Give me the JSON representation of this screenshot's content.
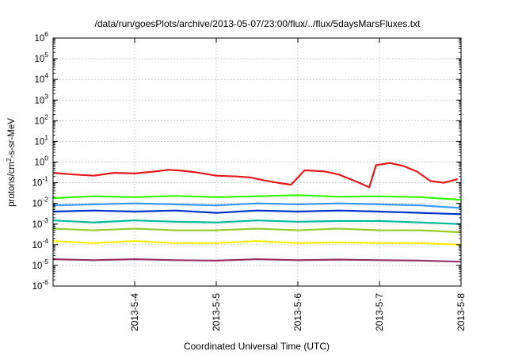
{
  "chart_data": {
    "type": "line",
    "title": "/data/run/goesPlots/archive/2013-05-07/23:00/flux/../flux/5daysMarsFluxes.txt",
    "xlabel": "Coordinated Universal Time (UTC)",
    "ylabel_parts": [
      "protons/cm",
      "2",
      "-s-sr-MeV"
    ],
    "yscale": "log",
    "ylim": [
      1e-06,
      1000000.0
    ],
    "xlim": [
      "2013-05-03 00:00",
      "2013-05-08 00:00"
    ],
    "x_tick_labels": [
      "2013-5-4",
      "2013-5-5",
      "2013-5-6",
      "2013-5-7",
      "2013-5-8"
    ],
    "y_tick_labels": [
      {
        "base": "10",
        "exp": "-6"
      },
      {
        "base": "10",
        "exp": "-5"
      },
      {
        "base": "10",
        "exp": "-4"
      },
      {
        "base": "10",
        "exp": "-3"
      },
      {
        "base": "10",
        "exp": "-2"
      },
      {
        "base": "10",
        "exp": "-1"
      },
      {
        "base": "10",
        "exp": "0"
      },
      {
        "base": "10",
        "exp": "1"
      },
      {
        "base": "10",
        "exp": "2"
      },
      {
        "base": "10",
        "exp": "3"
      },
      {
        "base": "10",
        "exp": "4"
      },
      {
        "base": "10",
        "exp": "5"
      },
      {
        "base": "10",
        "exp": "6"
      }
    ],
    "grid": true,
    "series": [
      {
        "color": "#e41a1c",
        "values": [
          [
            "2013-05-03 00:00",
            0.3
          ],
          [
            "2013-05-03 06:00",
            0.25
          ],
          [
            "2013-05-03 12:00",
            0.22
          ],
          [
            "2013-05-03 18:00",
            0.3
          ],
          [
            "2013-05-04 00:00",
            0.28
          ],
          [
            "2013-05-04 06:00",
            0.35
          ],
          [
            "2013-05-04 10:00",
            0.42
          ],
          [
            "2013-05-04 14:00",
            0.38
          ],
          [
            "2013-05-04 18:00",
            0.32
          ],
          [
            "2013-05-05 00:00",
            0.22
          ],
          [
            "2013-05-05 06:00",
            0.2
          ],
          [
            "2013-05-05 10:00",
            0.18
          ],
          [
            "2013-05-05 14:00",
            0.13
          ],
          [
            "2013-05-05 18:00",
            0.1
          ],
          [
            "2013-05-05 22:00",
            0.08
          ],
          [
            "2013-05-06 02:00",
            0.4
          ],
          [
            "2013-05-06 08:00",
            0.35
          ],
          [
            "2013-05-06 12:00",
            0.25
          ],
          [
            "2013-05-06 18:00",
            0.1
          ],
          [
            "2013-05-06 21:00",
            0.06
          ],
          [
            "2013-05-06 23:00",
            0.7
          ],
          [
            "2013-05-07 03:00",
            0.9
          ],
          [
            "2013-05-07 07:00",
            0.65
          ],
          [
            "2013-05-07 11:00",
            0.35
          ],
          [
            "2013-05-07 15:00",
            0.12
          ],
          [
            "2013-05-07 19:00",
            0.1
          ],
          [
            "2013-05-07 23:00",
            0.15
          ]
        ]
      },
      {
        "color": "#33ff00",
        "values": [
          [
            "2013-05-03 00:00",
            0.018
          ],
          [
            "2013-05-03 12:00",
            0.022
          ],
          [
            "2013-05-04 00:00",
            0.02
          ],
          [
            "2013-05-04 12:00",
            0.023
          ],
          [
            "2013-05-05 00:00",
            0.02
          ],
          [
            "2013-05-05 12:00",
            0.022
          ],
          [
            "2013-05-06 00:00",
            0.025
          ],
          [
            "2013-05-06 12:00",
            0.021
          ],
          [
            "2013-05-07 00:00",
            0.022
          ],
          [
            "2013-05-07 12:00",
            0.02
          ],
          [
            "2013-05-08 00:00",
            0.015
          ]
        ]
      },
      {
        "color": "#3399ff",
        "values": [
          [
            "2013-05-03 00:00",
            0.008
          ],
          [
            "2013-05-03 12:00",
            0.009
          ],
          [
            "2013-05-04 00:00",
            0.01
          ],
          [
            "2013-05-04 12:00",
            0.009
          ],
          [
            "2013-05-05 00:00",
            0.008
          ],
          [
            "2013-05-05 12:00",
            0.01
          ],
          [
            "2013-05-06 00:00",
            0.009
          ],
          [
            "2013-05-06 12:00",
            0.01
          ],
          [
            "2013-05-07 00:00",
            0.009
          ],
          [
            "2013-05-07 12:00",
            0.008
          ],
          [
            "2013-05-08 00:00",
            0.006
          ]
        ]
      },
      {
        "color": "#0033cc",
        "values": [
          [
            "2013-05-03 00:00",
            0.004
          ],
          [
            "2013-05-03 12:00",
            0.0045
          ],
          [
            "2013-05-04 00:00",
            0.004
          ],
          [
            "2013-05-04 12:00",
            0.0045
          ],
          [
            "2013-05-05 00:00",
            0.0035
          ],
          [
            "2013-05-05 12:00",
            0.0045
          ],
          [
            "2013-05-06 00:00",
            0.004
          ],
          [
            "2013-05-06 12:00",
            0.0045
          ],
          [
            "2013-05-07 00:00",
            0.004
          ],
          [
            "2013-05-07 12:00",
            0.0035
          ],
          [
            "2013-05-08 00:00",
            0.003
          ]
        ]
      },
      {
        "color": "#00bb99",
        "values": [
          [
            "2013-05-03 00:00",
            0.0015
          ],
          [
            "2013-05-03 12:00",
            0.0012
          ],
          [
            "2013-05-04 00:00",
            0.0015
          ],
          [
            "2013-05-04 12:00",
            0.0013
          ],
          [
            "2013-05-05 00:00",
            0.0012
          ],
          [
            "2013-05-05 12:00",
            0.0015
          ],
          [
            "2013-05-06 00:00",
            0.0013
          ],
          [
            "2013-05-06 12:00",
            0.0014
          ],
          [
            "2013-05-07 00:00",
            0.0014
          ],
          [
            "2013-05-07 12:00",
            0.0012
          ],
          [
            "2013-05-08 00:00",
            0.001
          ]
        ]
      },
      {
        "color": "#99cc33",
        "values": [
          [
            "2013-05-03 00:00",
            0.0006
          ],
          [
            "2013-05-03 12:00",
            0.0005
          ],
          [
            "2013-05-04 00:00",
            0.0006
          ],
          [
            "2013-05-04 12:00",
            0.0005
          ],
          [
            "2013-05-05 00:00",
            0.0005
          ],
          [
            "2013-05-05 12:00",
            0.0006
          ],
          [
            "2013-05-06 00:00",
            0.0005
          ],
          [
            "2013-05-06 12:00",
            0.0006
          ],
          [
            "2013-05-07 00:00",
            0.0005
          ],
          [
            "2013-05-07 12:00",
            0.0005
          ],
          [
            "2013-05-08 00:00",
            0.0004
          ]
        ]
      },
      {
        "color": "#ffee00",
        "values": [
          [
            "2013-05-03 00:00",
            0.00015
          ],
          [
            "2013-05-03 12:00",
            0.00012
          ],
          [
            "2013-05-04 00:00",
            0.00015
          ],
          [
            "2013-05-04 12:00",
            0.00012
          ],
          [
            "2013-05-05 00:00",
            0.00012
          ],
          [
            "2013-05-05 12:00",
            0.00015
          ],
          [
            "2013-05-06 00:00",
            0.00012
          ],
          [
            "2013-05-06 12:00",
            0.00013
          ],
          [
            "2013-05-07 00:00",
            0.00012
          ],
          [
            "2013-05-07 12:00",
            0.00012
          ],
          [
            "2013-05-08 00:00",
            0.0001
          ]
        ]
      },
      {
        "color": "#993366",
        "values": [
          [
            "2013-05-03 00:00",
            2e-05
          ],
          [
            "2013-05-03 12:00",
            1.8e-05
          ],
          [
            "2013-05-04 00:00",
            2e-05
          ],
          [
            "2013-05-04 12:00",
            1.8e-05
          ],
          [
            "2013-05-05 00:00",
            1.7e-05
          ],
          [
            "2013-05-05 12:00",
            2e-05
          ],
          [
            "2013-05-06 00:00",
            1.8e-05
          ],
          [
            "2013-05-06 12:00",
            1.9e-05
          ],
          [
            "2013-05-07 00:00",
            1.8e-05
          ],
          [
            "2013-05-07 12:00",
            1.7e-05
          ],
          [
            "2013-05-08 00:00",
            1.5e-05
          ]
        ]
      }
    ]
  }
}
